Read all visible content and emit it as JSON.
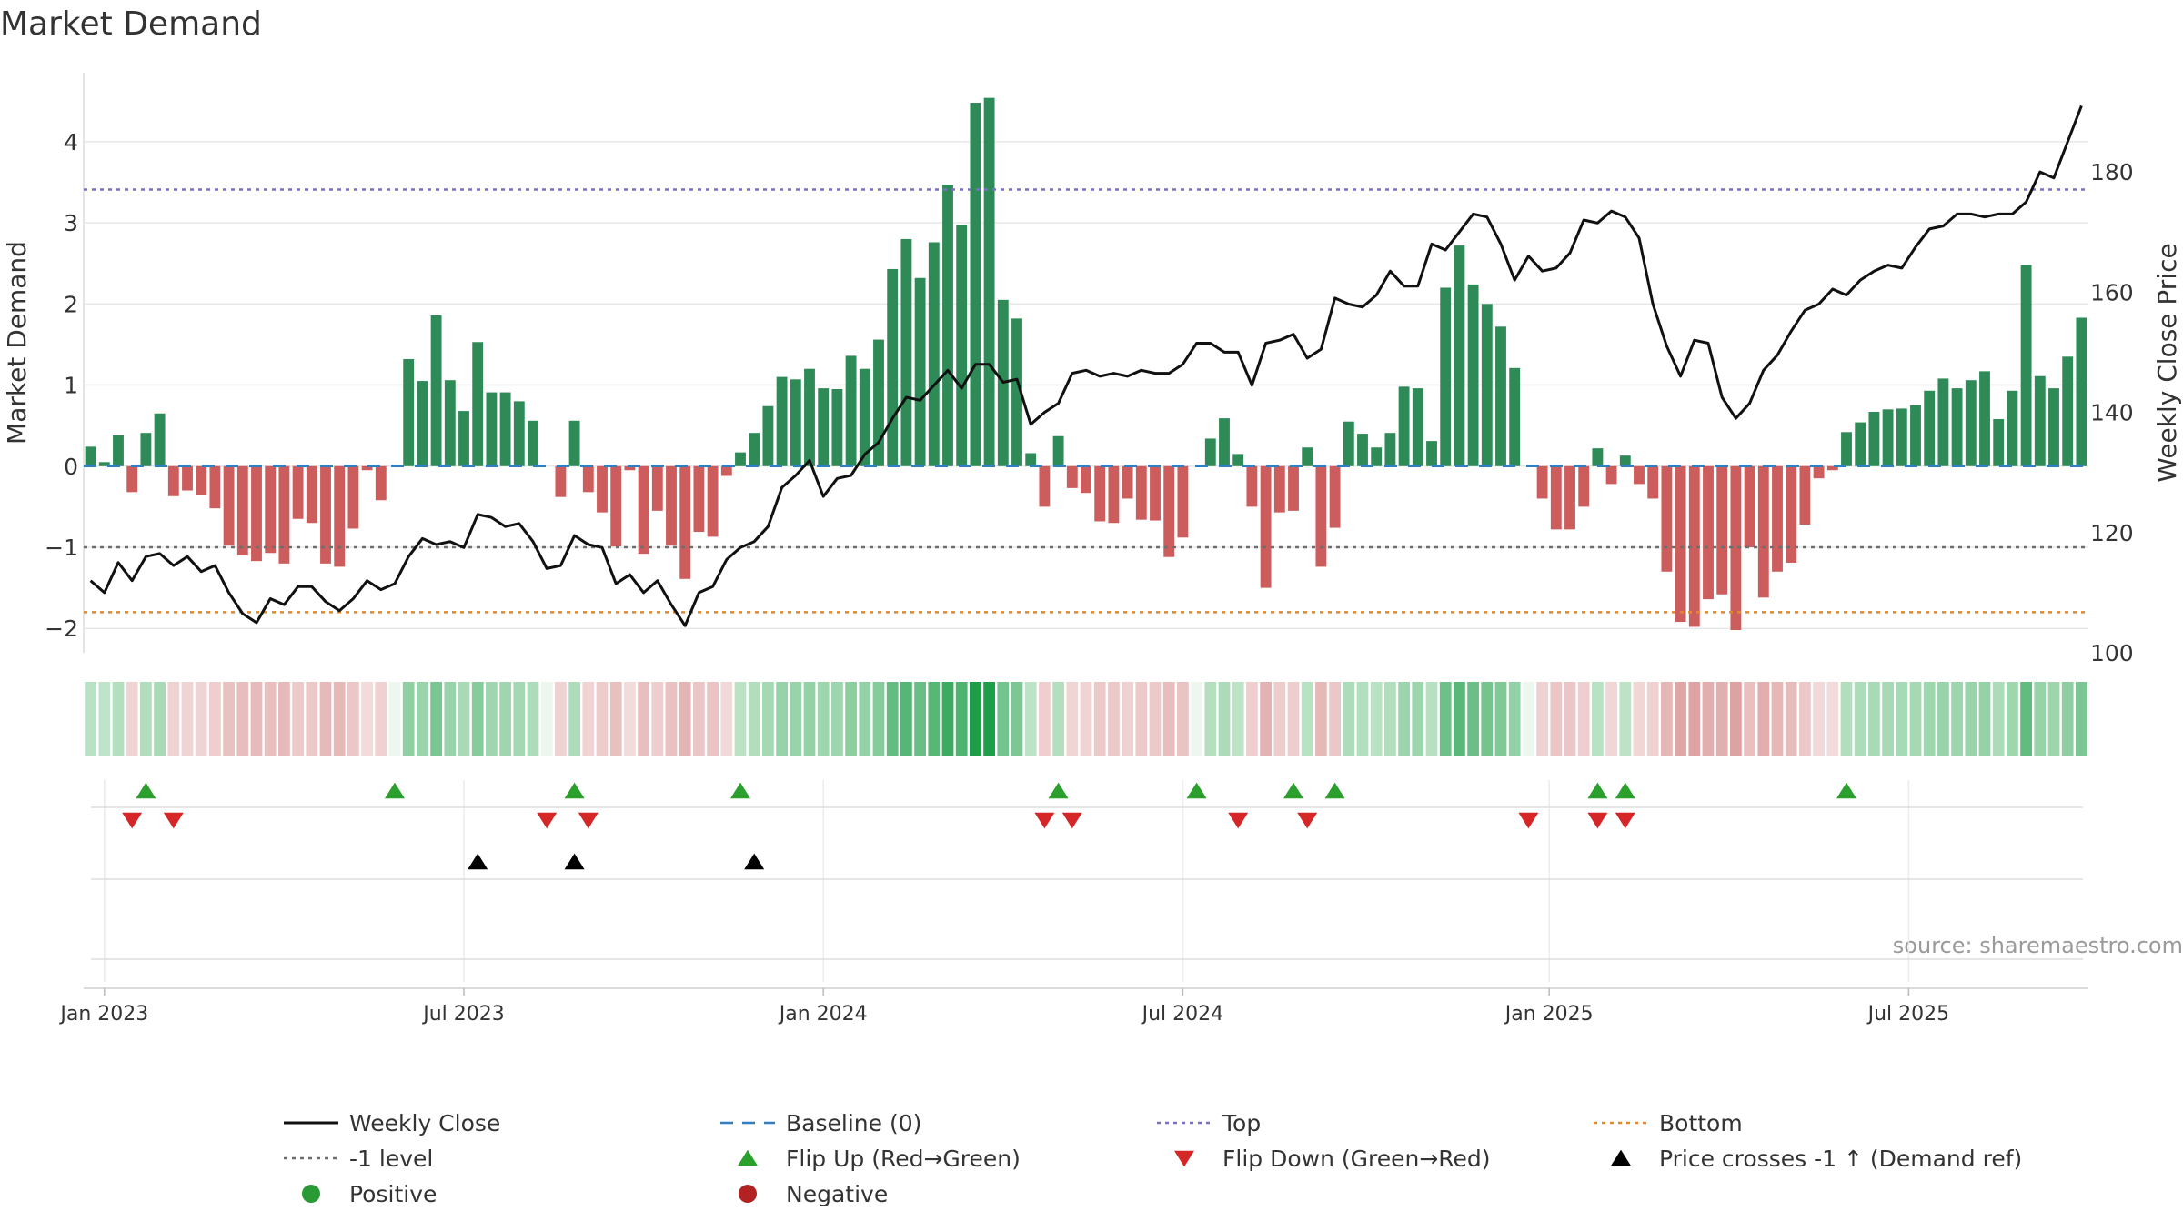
{
  "chart_data": {
    "type": "bar",
    "title": "Market Demand",
    "ylabel": "Market Demand",
    "y2label": "Weekly Close Price",
    "ylim": [
      -2.3,
      4.85
    ],
    "y2lim": [
      100,
      196.5
    ],
    "yticks": [
      -2,
      -1,
      0,
      1,
      2,
      3,
      4
    ],
    "ytick_labels": [
      "−2",
      "−1",
      "0",
      "1",
      "2",
      "3",
      "4"
    ],
    "y2ticks": [
      100,
      120,
      140,
      160,
      180
    ],
    "y2tick_labels": [
      "100",
      "120",
      "140",
      "160",
      "180"
    ],
    "x_start": "2022-12-25",
    "weeks": 145,
    "week_ticks": [
      1.5,
      27.5,
      53.5,
      79.5,
      106,
      132
    ],
    "xtick_labels": [
      "Jan 2023",
      "Jul 2023",
      "Jan 2024",
      "Jul 2024",
      "Jan 2025",
      "Jul 2025"
    ],
    "demand": [
      0.24,
      0.05,
      0.38,
      -0.32,
      0.41,
      0.65,
      -0.37,
      -0.3,
      -0.35,
      -0.52,
      -0.98,
      -1.1,
      -1.17,
      -1.07,
      -1.2,
      -0.65,
      -0.7,
      -1.2,
      -1.24,
      -0.77,
      -0.05,
      -0.42,
      0.0,
      1.32,
      1.05,
      1.86,
      1.06,
      0.68,
      1.53,
      0.91,
      0.91,
      0.8,
      0.56,
      0.0,
      -0.38,
      0.56,
      -0.32,
      -0.57,
      -0.99,
      -0.05,
      -1.08,
      -0.55,
      -0.98,
      -1.39,
      -0.81,
      -0.87,
      -0.12,
      0.17,
      0.41,
      0.74,
      1.1,
      1.07,
      1.2,
      0.96,
      0.95,
      1.36,
      1.2,
      1.56,
      2.43,
      2.8,
      2.32,
      2.76,
      3.47,
      2.97,
      4.48,
      4.54,
      2.05,
      1.82,
      0.16,
      -0.5,
      0.37,
      -0.27,
      -0.33,
      -0.68,
      -0.7,
      -0.4,
      -0.66,
      -0.67,
      -1.12,
      -0.88,
      0.0,
      0.34,
      0.59,
      0.15,
      -0.5,
      -1.5,
      -0.57,
      -0.55,
      0.23,
      -1.24,
      -0.76,
      0.55,
      0.4,
      0.23,
      0.41,
      0.98,
      0.96,
      0.31,
      2.2,
      2.72,
      2.24,
      2.0,
      1.72,
      1.21,
      0.0,
      -0.4,
      -0.78,
      -0.78,
      -0.5,
      0.22,
      -0.22,
      0.13,
      -0.22,
      -0.4,
      -1.3,
      -1.92,
      -1.98,
      -1.64,
      -1.58,
      -2.02,
      -1.0,
      -1.62,
      -1.3,
      -1.19,
      -0.72,
      -0.15,
      -0.05,
      0.42,
      0.54,
      0.67,
      0.7,
      0.71,
      0.75,
      0.93,
      1.08,
      0.96,
      1.06,
      1.17,
      0.58,
      0.93,
      2.48,
      1.11,
      0.96,
      1.35,
      1.83
    ],
    "weekly_close": [
      112.0,
      110.0,
      115.0,
      112.0,
      116.0,
      116.5,
      114.5,
      116.0,
      113.5,
      114.5,
      110.0,
      106.5,
      105.0,
      109.0,
      108.0,
      111.0,
      111.0,
      108.5,
      107.0,
      109.0,
      112.0,
      110.5,
      111.5,
      116.0,
      119.0,
      118.0,
      118.5,
      117.5,
      123.0,
      122.5,
      121.0,
      121.5,
      118.5,
      114.0,
      114.5,
      119.5,
      118.0,
      117.5,
      111.5,
      113.0,
      110.0,
      112.0,
      108.0,
      104.5,
      110.0,
      111.0,
      115.5,
      117.5,
      118.5,
      121.0,
      127.5,
      129.5,
      132.0,
      126.0,
      129.0,
      129.5,
      133.0,
      135.0,
      139.0,
      142.5,
      142.0,
      144.5,
      147.0,
      144.0,
      148.0,
      148.0,
      145.0,
      145.5,
      138.0,
      140.0,
      141.5,
      146.5,
      147.0,
      146.0,
      146.5,
      146.0,
      147.0,
      146.5,
      146.5,
      148.0,
      151.5,
      151.5,
      150.0,
      150.0,
      144.5,
      151.5,
      152.0,
      153.0,
      149.0,
      150.5,
      159.0,
      158.0,
      157.5,
      159.5,
      163.5,
      161.0,
      161.0,
      168.0,
      167.0,
      170.0,
      173.0,
      172.5,
      168.0,
      162.0,
      166.0,
      163.5,
      164.0,
      166.5,
      172.0,
      171.5,
      173.5,
      172.5,
      169.0,
      158.0,
      151.0,
      146.0,
      152.0,
      151.5,
      142.5,
      139.0,
      141.5,
      147.0,
      149.5,
      153.5,
      157.0,
      158.0,
      160.5,
      159.5,
      162.0,
      163.5,
      164.5,
      164.0,
      167.5,
      170.5,
      171.0,
      173.0,
      173.0,
      172.5,
      173.0,
      173.0,
      175.0,
      180.0,
      179.0,
      185.0,
      191.0
    ],
    "reference_lines": [
      {
        "name": "Top",
        "value": 3.41,
        "color": "#7b6fc4"
      },
      {
        "name": "-1 level",
        "value": -1.0,
        "color": "#6e6e6e"
      },
      {
        "name": "Bottom",
        "value": -1.8,
        "color": "#e08a2d"
      },
      {
        "name": "Baseline (0)",
        "value": 0.0,
        "color": "#2f7fc1"
      }
    ],
    "flip_up_weeks": [
      4,
      22,
      35,
      47,
      70,
      80,
      87,
      90,
      109,
      111,
      127
    ],
    "flip_down_weeks": [
      3,
      6,
      33,
      36,
      69,
      71,
      83,
      88,
      104,
      109,
      111
    ],
    "price_cross_weeks": [
      28,
      35,
      48
    ],
    "colors": {
      "positive": "#2e8b57",
      "negative": "#cd5c5c",
      "line": "#111111",
      "flip_up": "#2ca02c",
      "flip_down": "#d62728",
      "cross": "#000000",
      "grid": "#e8e8e8",
      "legend_positive": "#2a9a34",
      "legend_negative": "#b22222"
    },
    "source": "source: sharemaestro.com",
    "legend": [
      {
        "label": "Weekly Close",
        "kind": "solid-line",
        "color": "#111111"
      },
      {
        "label": "Baseline (0)",
        "kind": "dash-line",
        "color": "#2f7fc1"
      },
      {
        "label": "Top",
        "kind": "dot-line",
        "color": "#7b6fc4"
      },
      {
        "label": "Bottom",
        "kind": "dot-line",
        "color": "#e08a2d"
      },
      {
        "label": "-1 level",
        "kind": "dot-line",
        "color": "#6e6e6e"
      },
      {
        "label": "Flip Up (Red→Green)",
        "kind": "tri-up",
        "color": "#2ca02c"
      },
      {
        "label": "Flip Down (Green→Red)",
        "kind": "tri-down",
        "color": "#d62728"
      },
      {
        "label": "Price crosses -1 ↑ (Demand ref)",
        "kind": "tri-up",
        "color": "#000000"
      },
      {
        "label": "Positive",
        "kind": "circle",
        "color": "#2a9a34"
      },
      {
        "label": "Negative",
        "kind": "circle",
        "color": "#b22222"
      }
    ]
  }
}
